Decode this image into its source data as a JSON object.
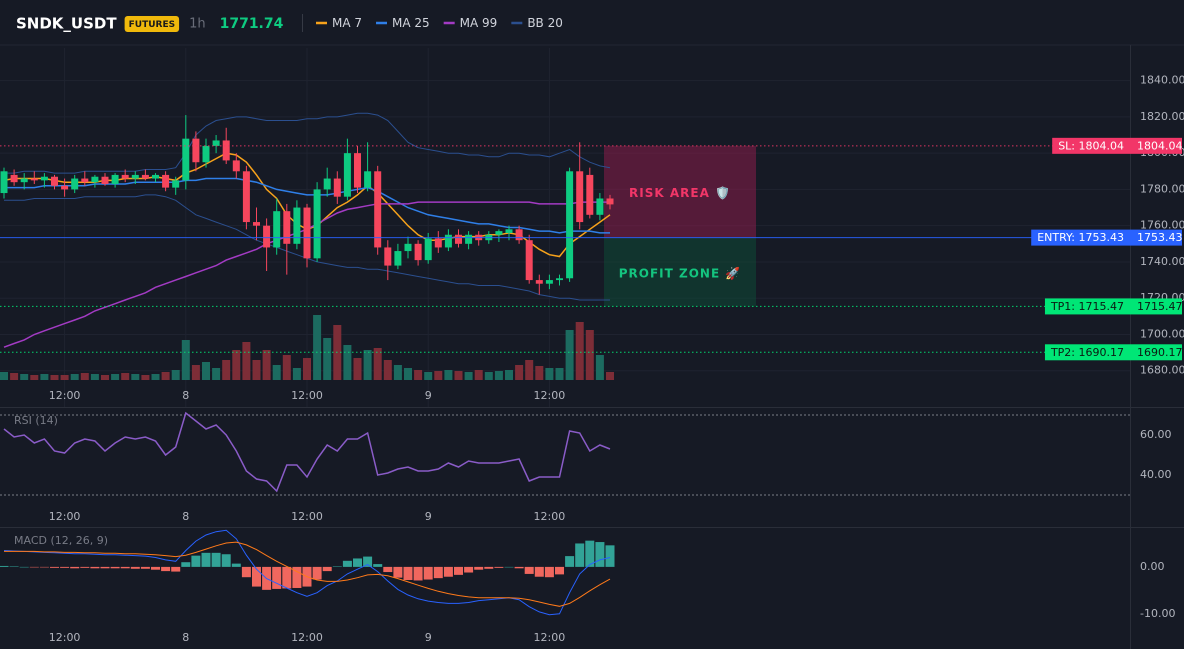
{
  "header": {
    "symbol": "SNDK_USDT",
    "badge": "FUTURES",
    "interval": "1h",
    "price": 1771.74
  },
  "chart_data": [
    {
      "type": "candlestick",
      "categories": [
        null,
        null,
        null,
        null,
        null,
        null,
        "12:00",
        null,
        null,
        null,
        null,
        null,
        null,
        null,
        null,
        null,
        null,
        null,
        "8",
        null,
        null,
        null,
        null,
        null,
        null,
        null,
        null,
        null,
        null,
        null,
        "12:00",
        null,
        null,
        null,
        null,
        null,
        null,
        null,
        null,
        null,
        null,
        null,
        "9",
        null,
        null,
        null,
        null,
        null,
        null,
        null,
        null,
        null,
        null,
        null,
        "12:00",
        null,
        null,
        null,
        null,
        null,
        null
      ],
      "open": [
        1778,
        1788,
        1784,
        1786,
        1785,
        1787,
        1782,
        1780,
        1786,
        1784,
        1787,
        1783,
        1788,
        1786,
        1788,
        1786,
        1788,
        1781,
        1785,
        1808,
        1795,
        1804,
        1807,
        1796,
        1790,
        1762,
        1760,
        1748,
        1768,
        1750,
        1770,
        1742,
        1780,
        1786,
        1776,
        1800,
        1781,
        1790,
        1748,
        1738,
        1746,
        1750,
        1741,
        1753,
        1748,
        1755,
        1750,
        1755,
        1752,
        1755,
        1756,
        1758,
        1752,
        1730,
        1728,
        1730,
        1731,
        1790,
        1788,
        1766,
        1775
      ],
      "high": [
        1792,
        1791,
        1789,
        1790,
        1789,
        1788,
        1786,
        1788,
        1790,
        1788,
        1789,
        1789,
        1791,
        1790,
        1791,
        1789,
        1790,
        1787,
        1821,
        1812,
        1808,
        1810,
        1814,
        1800,
        1793,
        1770,
        1764,
        1775,
        1772,
        1774,
        1772,
        1784,
        1792,
        1790,
        1808,
        1804,
        1806,
        1793,
        1752,
        1750,
        1754,
        1752,
        1756,
        1757,
        1758,
        1758,
        1757,
        1757,
        1757,
        1758,
        1760,
        1760,
        1755,
        1733,
        1733,
        1733,
        1792,
        1806,
        1792,
        1778,
        1777
      ],
      "low": [
        1775,
        1782,
        1780,
        1783,
        1781,
        1780,
        1776,
        1778,
        1782,
        1781,
        1782,
        1781,
        1784,
        1783,
        1785,
        1784,
        1779,
        1777,
        1780,
        1790,
        1792,
        1800,
        1794,
        1786,
        1758,
        1752,
        1735,
        1744,
        1733,
        1747,
        1737,
        1740,
        1776,
        1772,
        1774,
        1778,
        1779,
        1744,
        1730,
        1736,
        1742,
        1738,
        1739,
        1745,
        1746,
        1748,
        1747,
        1749,
        1750,
        1751,
        1752,
        1750,
        1728,
        1722,
        1725,
        1727,
        1729,
        1758,
        1764,
        1763,
        1769
      ],
      "close": [
        1790,
        1784,
        1786,
        1785,
        1787,
        1782,
        1780,
        1786,
        1784,
        1787,
        1783,
        1788,
        1786,
        1788,
        1786,
        1788,
        1781,
        1785,
        1808,
        1795,
        1804,
        1807,
        1796,
        1790,
        1762,
        1760,
        1748,
        1768,
        1750,
        1770,
        1742,
        1780,
        1786,
        1776,
        1800,
        1781,
        1790,
        1748,
        1738,
        1746,
        1750,
        1741,
        1753,
        1748,
        1755,
        1750,
        1755,
        1752,
        1755,
        1757,
        1758,
        1752,
        1730,
        1728,
        1730,
        1731,
        1790,
        1762,
        1766,
        1775,
        1771.74
      ],
      "up_color": "#0ecb81",
      "down_color": "#f6465d",
      "volume": [
        8,
        7,
        6,
        5,
        6,
        5,
        5,
        6,
        7,
        6,
        5,
        6,
        7,
        6,
        5,
        6,
        8,
        10,
        40,
        15,
        18,
        12,
        20,
        30,
        38,
        20,
        30,
        15,
        25,
        12,
        22,
        65,
        42,
        55,
        35,
        22,
        30,
        32,
        20,
        15,
        12,
        10,
        8,
        9,
        10,
        9,
        8,
        10,
        8,
        9,
        10,
        15,
        20,
        14,
        12,
        12,
        50,
        58,
        50,
        25,
        8
      ],
      "volume_ylim": [
        0,
        100
      ],
      "volume_up_color": "#1c6b60",
      "volume_down_color": "#7d2d37",
      "series": [
        {
          "name": "MA 7",
          "color": "#f7a21b",
          "values": [
            1785,
            1786,
            1786,
            1786,
            1786,
            1785,
            1784,
            1784,
            1784,
            1784,
            1785,
            1785,
            1786,
            1786,
            1786,
            1787,
            1786,
            1785,
            1789,
            1791,
            1794,
            1797,
            1800,
            1799,
            1795,
            1788,
            1780,
            1775,
            1766,
            1761,
            1758,
            1760,
            1765,
            1770,
            1773,
            1777,
            1782,
            1778,
            1772,
            1766,
            1760,
            1755,
            1752,
            1752,
            1753,
            1754,
            1754,
            1754,
            1755,
            1755,
            1756,
            1755,
            1751,
            1747,
            1744,
            1743,
            1750,
            1754,
            1758,
            1762,
            1766
          ]
        },
        {
          "name": "MA 25",
          "color": "#2f7fe8",
          "values": [
            1781,
            1781,
            1781,
            1781,
            1782,
            1782,
            1782,
            1782,
            1782,
            1783,
            1783,
            1783,
            1783,
            1784,
            1784,
            1784,
            1784,
            1784,
            1785,
            1785,
            1786,
            1786,
            1786,
            1786,
            1785,
            1784,
            1782,
            1780,
            1779,
            1778,
            1777,
            1777,
            1777,
            1778,
            1779,
            1780,
            1781,
            1779,
            1776,
            1773,
            1770,
            1768,
            1766,
            1765,
            1764,
            1763,
            1762,
            1761,
            1761,
            1760,
            1759,
            1759,
            1758,
            1757,
            1757,
            1756,
            1757,
            1757,
            1757,
            1756,
            1756
          ]
        },
        {
          "name": "MA 99",
          "color": "#a33bc4",
          "values": [
            1693,
            1695,
            1697,
            1700,
            1702,
            1704,
            1706,
            1708,
            1710,
            1713,
            1715,
            1717,
            1719,
            1721,
            1723,
            1726,
            1728,
            1730,
            1732,
            1734,
            1736,
            1738,
            1741,
            1743,
            1745,
            1747,
            1750,
            1752,
            1754,
            1756,
            1758,
            1761,
            1764,
            1767,
            1769,
            1770,
            1771,
            1772,
            1772,
            1772,
            1772,
            1773,
            1773,
            1773,
            1773,
            1773,
            1773,
            1773,
            1773,
            1773,
            1773,
            1773,
            1773,
            1772,
            1772,
            1772,
            1772,
            1773,
            1773,
            1773,
            1773
          ]
        },
        {
          "name": "BB 20",
          "color": "#2b4f8f",
          "values": [
            1789,
            1789,
            1790,
            1790,
            1790,
            1789,
            1789,
            1789,
            1790,
            1790,
            1790,
            1790,
            1790,
            1790,
            1791,
            1791,
            1791,
            1792,
            1800,
            1810,
            1815,
            1818,
            1819,
            1820,
            1820,
            1819,
            1818,
            1818,
            1818,
            1818,
            1819,
            1819,
            1820,
            1820,
            1821,
            1822,
            1822,
            1821,
            1818,
            1812,
            1806,
            1803,
            1802,
            1801,
            1800,
            1800,
            1799,
            1799,
            1798,
            1798,
            1800,
            1800,
            1799,
            1799,
            1798,
            1800,
            1802,
            1798,
            1795,
            1793,
            1792
          ],
          "lower": [
            1774,
            1774,
            1774,
            1775,
            1775,
            1775,
            1775,
            1775,
            1776,
            1776,
            1776,
            1776,
            1776,
            1776,
            1777,
            1777,
            1776,
            1774,
            1770,
            1766,
            1764,
            1762,
            1760,
            1758,
            1755,
            1752,
            1750,
            1748,
            1746,
            1744,
            1742,
            1740,
            1739,
            1738,
            1737,
            1737,
            1736,
            1736,
            1735,
            1734,
            1733,
            1732,
            1731,
            1730,
            1729,
            1728,
            1728,
            1727,
            1727,
            1727,
            1726,
            1725,
            1724,
            1722,
            1721,
            1720,
            1720,
            1719,
            1719,
            1719,
            1719
          ]
        }
      ],
      "ylim": [
        1660,
        1858
      ],
      "yticks": [
        {
          "value": 1680,
          "label": "1680.00"
        },
        {
          "value": 1700,
          "label": "1700.00"
        },
        {
          "value": 1720,
          "label": "1720.00"
        },
        {
          "value": 1740,
          "label": "1740.00"
        },
        {
          "value": 1760,
          "label": "1760.00"
        },
        {
          "value": 1780,
          "label": "1780.00"
        },
        {
          "value": 1800,
          "label": "1800.00"
        },
        {
          "value": 1820,
          "label": "1820.00"
        },
        {
          "value": 1840,
          "label": "1840.00"
        }
      ],
      "grid": true,
      "levels": [
        {
          "label": "SL: 1804.04",
          "value": 1804.04,
          "color": "#f23668",
          "text_color": "#ffffff",
          "style": "dotted"
        },
        {
          "label": "ENTRY: 1753.43",
          "value": 1753.43,
          "color": "#2962ff",
          "text_color": "#ffffff",
          "style": "solid"
        },
        {
          "label": "TP1: 1715.47",
          "value": 1715.47,
          "color": "#00e676",
          "text_color": "#0b1a12",
          "style": "dotted"
        },
        {
          "label": "TP2: 1690.17",
          "value": 1690.17,
          "color": "#00e676",
          "text_color": "#0b1a12",
          "style": "dotted"
        }
      ],
      "zones": [
        {
          "label": "RISK AREA 🛡️",
          "color": "#8a1e4a",
          "text_color": "#f23668"
        },
        {
          "label": "PROFIT ZONE 🚀",
          "color": "#0f4a37",
          "text_color": "#14c47f"
        }
      ]
    },
    {
      "type": "line",
      "title": "RSI (14)",
      "color": "#8a5cc8",
      "values": [
        63,
        59,
        60,
        56,
        58,
        52,
        51,
        56,
        58,
        57,
        52,
        56,
        59,
        58,
        59,
        57,
        50,
        54,
        71,
        67,
        63,
        65,
        60,
        52,
        42,
        38,
        37,
        32,
        45,
        45,
        39,
        48,
        55,
        52,
        58,
        58,
        61,
        40,
        41,
        43,
        44,
        42,
        42,
        43,
        46,
        44,
        47,
        46,
        46,
        46,
        47,
        48,
        37,
        39,
        39,
        39,
        62,
        61,
        52,
        55,
        53
      ],
      "ylim": [
        25,
        73.5
      ],
      "yticks": [
        {
          "value": 40,
          "label": "40.00"
        },
        {
          "value": 60,
          "label": "60.00"
        }
      ],
      "levels": [
        70,
        30
      ]
    },
    {
      "type": "macd",
      "title": "MACD (12, 26, 9)",
      "series": [
        {
          "color": "#2962ff",
          "values": [
            3.5,
            3.4,
            3.3,
            3.2,
            3.1,
            3.0,
            2.9,
            2.8,
            2.8,
            2.7,
            2.6,
            2.6,
            2.5,
            2.4,
            2.3,
            2.0,
            1.5,
            1.2,
            3.5,
            5.5,
            6.8,
            7.5,
            7.8,
            6.0,
            2.5,
            -0.5,
            -2.5,
            -3.5,
            -4.5,
            -5.5,
            -6.3,
            -5.5,
            -4.0,
            -3.0,
            -1.5,
            -0.5,
            0.5,
            -1.0,
            -3.0,
            -4.8,
            -6.0,
            -6.8,
            -7.3,
            -7.6,
            -7.8,
            -7.8,
            -7.6,
            -7.2,
            -7.0,
            -6.8,
            -6.6,
            -7.0,
            -8.5,
            -9.6,
            -10.2,
            -10.0,
            -5.5,
            -1.5,
            0.5,
            1.5,
            2.0
          ]
        },
        {
          "color": "#ff7a1a",
          "values": [
            3.3,
            3.3,
            3.3,
            3.3,
            3.2,
            3.2,
            3.1,
            3.1,
            3.0,
            3.0,
            2.9,
            2.9,
            2.8,
            2.8,
            2.7,
            2.6,
            2.4,
            2.2,
            2.5,
            3.1,
            3.8,
            4.5,
            5.1,
            5.3,
            4.7,
            3.7,
            2.4,
            1.2,
            0.1,
            -1.0,
            -2.1,
            -2.8,
            -3.1,
            -3.1,
            -2.8,
            -2.3,
            -1.7,
            -1.6,
            -1.9,
            -2.5,
            -3.2,
            -3.9,
            -4.6,
            -5.2,
            -5.7,
            -6.1,
            -6.4,
            -6.6,
            -6.6,
            -6.6,
            -6.6,
            -6.7,
            -7.0,
            -7.5,
            -8.0,
            -8.4,
            -7.8,
            -6.5,
            -5.1,
            -3.8,
            -2.6
          ]
        }
      ],
      "histogram": [
        0.2,
        0.1,
        0,
        -0.1,
        -0.1,
        -0.2,
        -0.2,
        -0.3,
        -0.2,
        -0.3,
        -0.3,
        -0.3,
        -0.3,
        -0.4,
        -0.4,
        -0.6,
        -0.9,
        -1.0,
        1.0,
        2.4,
        3.0,
        3.0,
        2.7,
        0.7,
        -2.2,
        -4.2,
        -4.9,
        -4.7,
        -4.6,
        -4.5,
        -4.2,
        -2.7,
        -0.9,
        0.1,
        1.3,
        1.8,
        2.2,
        0.6,
        -1.1,
        -2.3,
        -2.8,
        -2.9,
        -2.7,
        -2.4,
        -2.1,
        -1.7,
        -1.2,
        -0.6,
        -0.4,
        -0.2,
        0,
        -0.3,
        -1.5,
        -2.1,
        -2.2,
        -1.6,
        2.3,
        5.0,
        5.6,
        5.3,
        4.6
      ],
      "up_color": "#32a397",
      "down_color": "#f0675e",
      "ylim": [
        -12.4,
        8.3
      ],
      "yticks": [
        {
          "value": -10,
          "label": "-10.00"
        },
        {
          "value": 0,
          "label": "0.00"
        }
      ]
    }
  ]
}
